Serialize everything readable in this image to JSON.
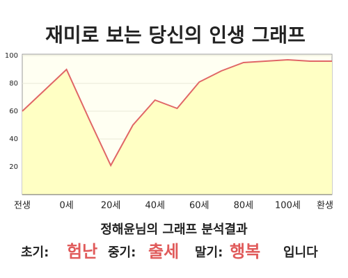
{
  "chart_data": {
    "type": "area",
    "title": "재미로 보는 당신의 인생 그래프",
    "categories": [
      "전생",
      null,
      "0세",
      null,
      "20세",
      null,
      "40세",
      null,
      "60세",
      null,
      "80세",
      null,
      "100세",
      null,
      "환생"
    ],
    "values": [
      60,
      75,
      90,
      55,
      21,
      50,
      68,
      62,
      81,
      89,
      95,
      96,
      97,
      96,
      96
    ],
    "color": "#e06666",
    "fill": "#ffffc4",
    "ylim": [
      0,
      100
    ],
    "yticks": [
      20,
      40,
      60,
      80,
      100
    ],
    "grid": true
  },
  "result": {
    "heading": "정해윤님의 그래프 분석결과",
    "early_label": "초기:",
    "early": "험난",
    "middle_label": "중기:",
    "middle": "출세",
    "late_label": "말기:",
    "late": "행복",
    "ending": "입니다"
  }
}
